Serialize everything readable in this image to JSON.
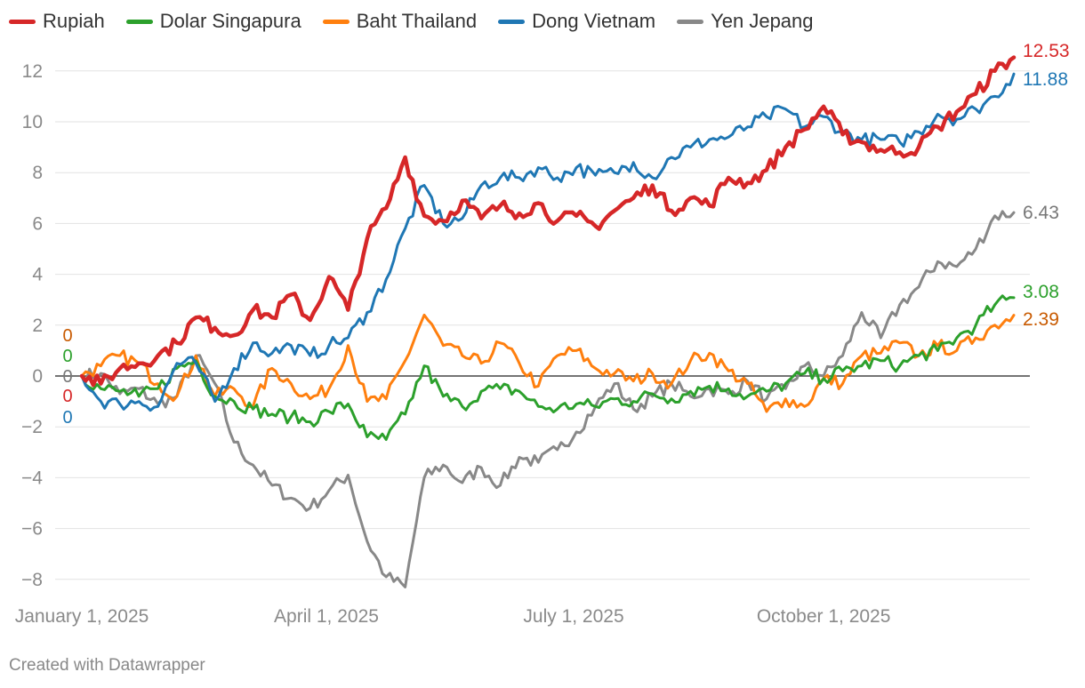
{
  "chart_data": {
    "type": "line",
    "title": "",
    "xlabel": "",
    "ylabel": "",
    "ylim": [
      -9,
      13
    ],
    "y_ticks": [
      -8,
      -6,
      -4,
      -2,
      0,
      2,
      4,
      6,
      8,
      10,
      12
    ],
    "x_ticks": [
      {
        "date": "2025-01-01",
        "label": "January 1, 2025"
      },
      {
        "date": "2025-04-01",
        "label": "April 1, 2025"
      },
      {
        "date": "2025-07-01",
        "label": "July 1, 2025"
      },
      {
        "date": "2025-10-01",
        "label": "October 1, 2025"
      }
    ],
    "x_range": [
      "2025-01-01",
      "2025-12-10"
    ],
    "grid": "horizontal",
    "zero_line": true,
    "legend_position": "top-left",
    "series": [
      {
        "name": "Rupiah",
        "color": "#d62728",
        "start_label": "0",
        "end_label": "12.53",
        "points": [
          [
            "2025-01-01",
            0
          ],
          [
            "2025-01-08",
            -0.3
          ],
          [
            "2025-01-15",
            0.3
          ],
          [
            "2025-01-22",
            0.5
          ],
          [
            "2025-01-29",
            0.8
          ],
          [
            "2025-02-05",
            1.3
          ],
          [
            "2025-02-12",
            2.3
          ],
          [
            "2025-02-19",
            1.9
          ],
          [
            "2025-02-26",
            1.6
          ],
          [
            "2025-03-05",
            2.6
          ],
          [
            "2025-03-12",
            2.3
          ],
          [
            "2025-03-19",
            3.2
          ],
          [
            "2025-03-26",
            2.2
          ],
          [
            "2025-04-02",
            3.9
          ],
          [
            "2025-04-09",
            2.6
          ],
          [
            "2025-04-16",
            5.4
          ],
          [
            "2025-04-23",
            6.6
          ],
          [
            "2025-04-30",
            8.6
          ],
          [
            "2025-05-07",
            6.3
          ],
          [
            "2025-05-14",
            6.1
          ],
          [
            "2025-05-21",
            6.9
          ],
          [
            "2025-05-28",
            6.2
          ],
          [
            "2025-06-04",
            6.7
          ],
          [
            "2025-06-11",
            6.4
          ],
          [
            "2025-06-18",
            6.8
          ],
          [
            "2025-06-25",
            6.1
          ],
          [
            "2025-07-02",
            6.3
          ],
          [
            "2025-07-09",
            5.9
          ],
          [
            "2025-07-16",
            6.5
          ],
          [
            "2025-07-23",
            7.0
          ],
          [
            "2025-07-30",
            7.5
          ],
          [
            "2025-08-06",
            6.5
          ],
          [
            "2025-08-13",
            7.0
          ],
          [
            "2025-08-20",
            6.7
          ],
          [
            "2025-08-27",
            7.8
          ],
          [
            "2025-09-03",
            7.6
          ],
          [
            "2025-09-10",
            8.1
          ],
          [
            "2025-09-17",
            9.0
          ],
          [
            "2025-09-24",
            9.7
          ],
          [
            "2025-10-01",
            10.6
          ],
          [
            "2025-10-08",
            9.5
          ],
          [
            "2025-10-15",
            9.2
          ],
          [
            "2025-10-22",
            8.9
          ],
          [
            "2025-10-29",
            8.8
          ],
          [
            "2025-11-05",
            9.0
          ],
          [
            "2025-11-12",
            9.8
          ],
          [
            "2025-11-19",
            10.4
          ],
          [
            "2025-11-26",
            11.1
          ],
          [
            "2025-12-03",
            12.0
          ],
          [
            "2025-12-10",
            12.53
          ]
        ]
      },
      {
        "name": "Dolar Singapura",
        "color": "#2ca02c",
        "start_label": "0",
        "end_label": "3.08",
        "points": [
          [
            "2025-01-01",
            0
          ],
          [
            "2025-01-08",
            -0.5
          ],
          [
            "2025-01-15",
            -0.6
          ],
          [
            "2025-01-22",
            -0.8
          ],
          [
            "2025-01-29",
            -0.5
          ],
          [
            "2025-02-05",
            0.3
          ],
          [
            "2025-02-12",
            0.6
          ],
          [
            "2025-02-19",
            -0.8
          ],
          [
            "2025-02-26",
            -1.0
          ],
          [
            "2025-03-05",
            -1.3
          ],
          [
            "2025-03-12",
            -1.5
          ],
          [
            "2025-03-19",
            -1.6
          ],
          [
            "2025-03-26",
            -1.8
          ],
          [
            "2025-04-02",
            -1.4
          ],
          [
            "2025-04-09",
            -1.1
          ],
          [
            "2025-04-16",
            -2.4
          ],
          [
            "2025-04-23",
            -2.5
          ],
          [
            "2025-04-30",
            -1.5
          ],
          [
            "2025-05-07",
            0.4
          ],
          [
            "2025-05-14",
            -0.8
          ],
          [
            "2025-05-21",
            -1.2
          ],
          [
            "2025-05-28",
            -0.6
          ],
          [
            "2025-06-04",
            -0.5
          ],
          [
            "2025-06-11",
            -0.6
          ],
          [
            "2025-06-18",
            -1.2
          ],
          [
            "2025-06-25",
            -1.3
          ],
          [
            "2025-07-02",
            -1.1
          ],
          [
            "2025-07-09",
            -1.2
          ],
          [
            "2025-07-16",
            -0.9
          ],
          [
            "2025-07-23",
            -1.0
          ],
          [
            "2025-07-30",
            -0.7
          ],
          [
            "2025-08-06",
            -0.9
          ],
          [
            "2025-08-13",
            -0.6
          ],
          [
            "2025-08-20",
            -0.4
          ],
          [
            "2025-08-27",
            -0.5
          ],
          [
            "2025-09-03",
            -0.8
          ],
          [
            "2025-09-10",
            -0.6
          ],
          [
            "2025-09-17",
            -0.3
          ],
          [
            "2025-09-24",
            0.1
          ],
          [
            "2025-10-01",
            -0.1
          ],
          [
            "2025-10-08",
            0.2
          ],
          [
            "2025-10-15",
            0.4
          ],
          [
            "2025-10-22",
            0.6
          ],
          [
            "2025-10-29",
            0.4
          ],
          [
            "2025-11-05",
            0.8
          ],
          [
            "2025-11-12",
            1.0
          ],
          [
            "2025-11-19",
            1.5
          ],
          [
            "2025-11-26",
            2.0
          ],
          [
            "2025-12-03",
            2.8
          ],
          [
            "2025-12-10",
            3.08
          ]
        ]
      },
      {
        "name": "Baht Thailand",
        "color": "#ff7f0e",
        "start_label": "0",
        "end_label": "2.39",
        "points": [
          [
            "2025-01-01",
            0
          ],
          [
            "2025-01-08",
            0.4
          ],
          [
            "2025-01-15",
            0.8
          ],
          [
            "2025-01-22",
            0.5
          ],
          [
            "2025-01-29",
            -0.3
          ],
          [
            "2025-02-05",
            -0.8
          ],
          [
            "2025-02-12",
            0.8
          ],
          [
            "2025-02-19",
            -0.8
          ],
          [
            "2025-02-26",
            -0.5
          ],
          [
            "2025-03-05",
            -1.2
          ],
          [
            "2025-03-12",
            0.3
          ],
          [
            "2025-03-19",
            -0.3
          ],
          [
            "2025-03-26",
            -0.9
          ],
          [
            "2025-04-02",
            -0.5
          ],
          [
            "2025-04-09",
            1.2
          ],
          [
            "2025-04-16",
            -1.0
          ],
          [
            "2025-04-23",
            -0.9
          ],
          [
            "2025-04-30",
            0.6
          ],
          [
            "2025-05-07",
            2.4
          ],
          [
            "2025-05-14",
            1.2
          ],
          [
            "2025-05-21",
            0.8
          ],
          [
            "2025-05-28",
            0.5
          ],
          [
            "2025-06-04",
            1.3
          ],
          [
            "2025-06-11",
            0.5
          ],
          [
            "2025-06-18",
            -0.4
          ],
          [
            "2025-06-25",
            0.8
          ],
          [
            "2025-07-02",
            1.0
          ],
          [
            "2025-07-09",
            0.3
          ],
          [
            "2025-07-16",
            0.1
          ],
          [
            "2025-07-23",
            -0.2
          ],
          [
            "2025-07-30",
            0.1
          ],
          [
            "2025-08-06",
            -0.3
          ],
          [
            "2025-08-13",
            0.6
          ],
          [
            "2025-08-20",
            0.9
          ],
          [
            "2025-08-27",
            0.2
          ],
          [
            "2025-09-03",
            -0.3
          ],
          [
            "2025-09-10",
            -1.4
          ],
          [
            "2025-09-17",
            -0.9
          ],
          [
            "2025-09-24",
            -1.2
          ],
          [
            "2025-10-01",
            -0.1
          ],
          [
            "2025-10-08",
            -0.3
          ],
          [
            "2025-10-15",
            0.8
          ],
          [
            "2025-10-22",
            0.9
          ],
          [
            "2025-10-29",
            1.3
          ],
          [
            "2025-11-05",
            0.8
          ],
          [
            "2025-11-12",
            1.2
          ],
          [
            "2025-11-19",
            1.0
          ],
          [
            "2025-11-26",
            1.5
          ],
          [
            "2025-12-03",
            2.0
          ],
          [
            "2025-12-10",
            2.39
          ]
        ]
      },
      {
        "name": "Dong Vietnam",
        "color": "#1f77b4",
        "start_label": "0",
        "end_label": "11.88",
        "points": [
          [
            "2025-01-01",
            0
          ],
          [
            "2025-01-08",
            -1.0
          ],
          [
            "2025-01-15",
            -1.1
          ],
          [
            "2025-01-22",
            -1.0
          ],
          [
            "2025-01-29",
            -1.2
          ],
          [
            "2025-02-05",
            0.5
          ],
          [
            "2025-02-12",
            0.5
          ],
          [
            "2025-02-19",
            -1.0
          ],
          [
            "2025-02-26",
            0.3
          ],
          [
            "2025-03-05",
            1.3
          ],
          [
            "2025-03-12",
            0.9
          ],
          [
            "2025-03-19",
            1.2
          ],
          [
            "2025-03-26",
            0.8
          ],
          [
            "2025-04-02",
            1.2
          ],
          [
            "2025-04-09",
            1.5
          ],
          [
            "2025-04-16",
            2.5
          ],
          [
            "2025-04-23",
            3.8
          ],
          [
            "2025-04-30",
            5.8
          ],
          [
            "2025-05-07",
            7.5
          ],
          [
            "2025-05-14",
            6.0
          ],
          [
            "2025-05-21",
            6.2
          ],
          [
            "2025-05-28",
            7.5
          ],
          [
            "2025-06-04",
            7.8
          ],
          [
            "2025-06-11",
            7.8
          ],
          [
            "2025-06-18",
            8.2
          ],
          [
            "2025-06-25",
            7.8
          ],
          [
            "2025-07-02",
            8.2
          ],
          [
            "2025-07-09",
            7.9
          ],
          [
            "2025-07-16",
            8.0
          ],
          [
            "2025-07-23",
            8.4
          ],
          [
            "2025-07-30",
            7.8
          ],
          [
            "2025-08-06",
            8.6
          ],
          [
            "2025-08-13",
            9.0
          ],
          [
            "2025-08-20",
            9.3
          ],
          [
            "2025-08-27",
            9.4
          ],
          [
            "2025-09-03",
            9.8
          ],
          [
            "2025-09-10",
            10.2
          ],
          [
            "2025-09-17",
            10.5
          ],
          [
            "2025-09-24",
            9.8
          ],
          [
            "2025-10-01",
            10.2
          ],
          [
            "2025-10-08",
            9.6
          ],
          [
            "2025-10-15",
            9.3
          ],
          [
            "2025-10-22",
            9.3
          ],
          [
            "2025-10-29",
            9.2
          ],
          [
            "2025-11-05",
            9.6
          ],
          [
            "2025-11-12",
            10.3
          ],
          [
            "2025-11-19",
            10.1
          ],
          [
            "2025-11-26",
            10.5
          ],
          [
            "2025-12-03",
            11.0
          ],
          [
            "2025-12-10",
            11.88
          ]
        ]
      },
      {
        "name": "Yen Jepang",
        "color": "#888888",
        "start_label": "0",
        "end_label": "6.43",
        "points": [
          [
            "2025-01-01",
            0
          ],
          [
            "2025-01-08",
            0.1
          ],
          [
            "2025-01-15",
            -0.7
          ],
          [
            "2025-01-22",
            -0.5
          ],
          [
            "2025-01-29",
            -1.1
          ],
          [
            "2025-02-05",
            -0.8
          ],
          [
            "2025-02-12",
            0.8
          ],
          [
            "2025-02-19",
            -0.3
          ],
          [
            "2025-02-26",
            -2.6
          ],
          [
            "2025-03-05",
            -3.5
          ],
          [
            "2025-03-12",
            -4.3
          ],
          [
            "2025-03-19",
            -4.8
          ],
          [
            "2025-03-26",
            -5.2
          ],
          [
            "2025-04-02",
            -4.5
          ],
          [
            "2025-04-09",
            -3.9
          ],
          [
            "2025-04-16",
            -6.5
          ],
          [
            "2025-04-23",
            -7.9
          ],
          [
            "2025-04-30",
            -8.3
          ],
          [
            "2025-05-07",
            -4.0
          ],
          [
            "2025-05-14",
            -3.5
          ],
          [
            "2025-05-21",
            -4.2
          ],
          [
            "2025-05-28",
            -3.6
          ],
          [
            "2025-06-04",
            -4.3
          ],
          [
            "2025-06-11",
            -3.2
          ],
          [
            "2025-06-18",
            -3.4
          ],
          [
            "2025-06-25",
            -2.9
          ],
          [
            "2025-07-02",
            -2.2
          ],
          [
            "2025-07-09",
            -1.2
          ],
          [
            "2025-07-16",
            -0.3
          ],
          [
            "2025-07-23",
            -1.3
          ],
          [
            "2025-07-30",
            -0.8
          ],
          [
            "2025-08-06",
            -0.3
          ],
          [
            "2025-08-13",
            -0.8
          ],
          [
            "2025-08-20",
            -0.5
          ],
          [
            "2025-08-27",
            -0.7
          ],
          [
            "2025-09-03",
            -0.2
          ],
          [
            "2025-09-10",
            -0.9
          ],
          [
            "2025-09-17",
            -0.5
          ],
          [
            "2025-09-24",
            0.4
          ],
          [
            "2025-10-01",
            0.0
          ],
          [
            "2025-10-08",
            0.8
          ],
          [
            "2025-10-15",
            2.5
          ],
          [
            "2025-10-22",
            1.5
          ],
          [
            "2025-10-29",
            2.8
          ],
          [
            "2025-11-05",
            3.5
          ],
          [
            "2025-11-12",
            4.5
          ],
          [
            "2025-11-19",
            4.3
          ],
          [
            "2025-11-26",
            5.0
          ],
          [
            "2025-12-03",
            6.3
          ],
          [
            "2025-12-10",
            6.43
          ]
        ]
      }
    ]
  },
  "footer": {
    "credit": "Created with Datawrapper"
  }
}
